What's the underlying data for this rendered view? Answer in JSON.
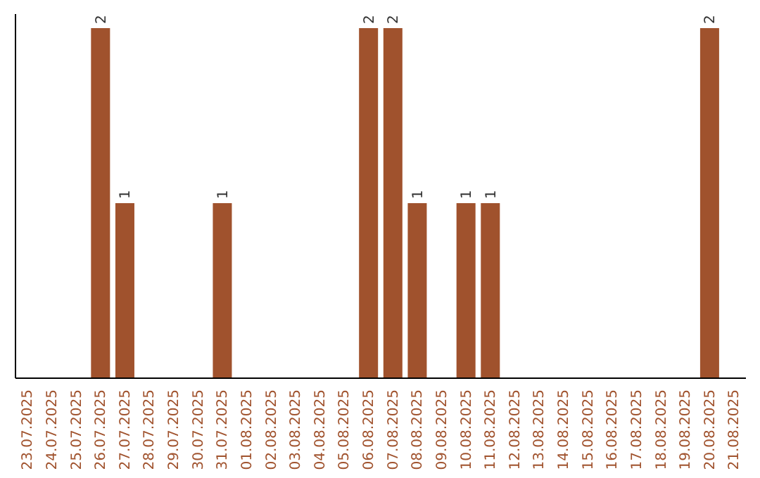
{
  "chart_data": {
    "type": "bar",
    "categories": [
      "23.07.2025",
      "24.07.2025",
      "25.07.2025",
      "26.07.2025",
      "27.07.2025",
      "28.07.2025",
      "29.07.2025",
      "30.07.2025",
      "31.07.2025",
      "01.08.2025",
      "02.08.2025",
      "03.08.2025",
      "04.08.2025",
      "05.08.2025",
      "06.08.2025",
      "07.08.2025",
      "08.08.2025",
      "09.08.2025",
      "10.08.2025",
      "11.08.2025",
      "12.08.2025",
      "13.08.2025",
      "14.08.2025",
      "15.08.2025",
      "16.08.2025",
      "17.08.2025",
      "18.08.2025",
      "19.08.2025",
      "20.08.2025",
      "21.08.2025"
    ],
    "values": [
      0,
      0,
      0,
      2,
      1,
      0,
      0,
      0,
      1,
      0,
      0,
      0,
      0,
      0,
      2,
      2,
      1,
      0,
      1,
      1,
      0,
      0,
      0,
      0,
      0,
      0,
      0,
      0,
      2,
      0
    ],
    "value_labels": [
      null,
      null,
      null,
      "2",
      "1",
      null,
      null,
      null,
      "1",
      null,
      null,
      null,
      null,
      null,
      "2",
      "2",
      "1",
      null,
      "1",
      "1",
      null,
      null,
      null,
      null,
      null,
      null,
      null,
      null,
      "2",
      null
    ],
    "color": "#a0522d",
    "tick_labels": "x"
  }
}
